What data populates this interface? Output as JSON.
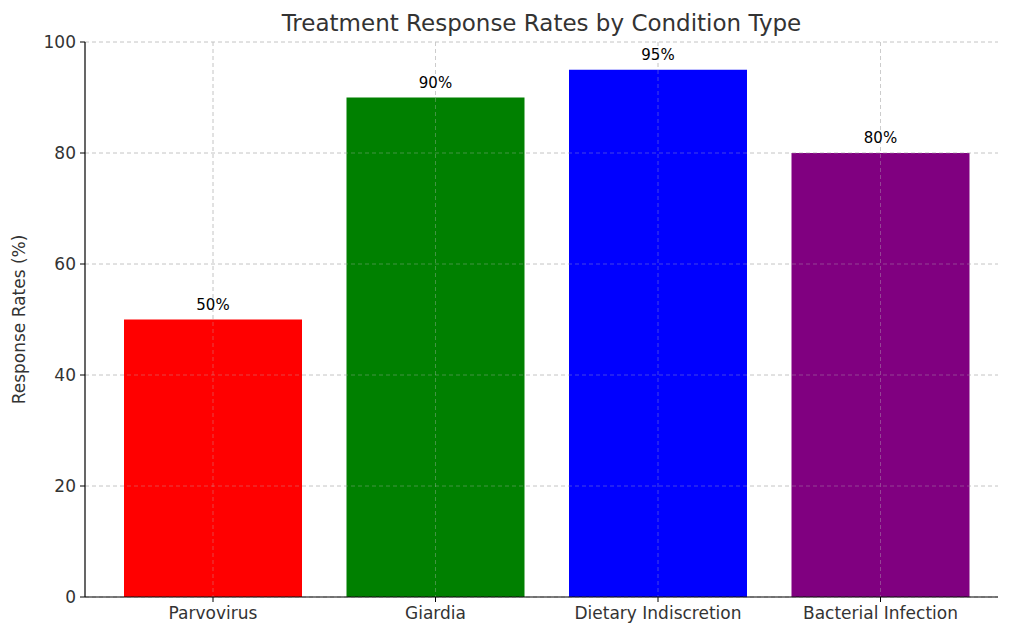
{
  "chart_data": {
    "type": "bar",
    "title": "Treatment Response Rates by Condition Type",
    "ylabel": "Response Rates (%)",
    "categories": [
      "Parvovirus",
      "Giardia",
      "Dietary Indiscretion",
      "Bacterial Infection"
    ],
    "values": [
      50,
      90,
      95,
      80
    ],
    "value_labels": [
      "50%",
      "90%",
      "95%",
      "80%"
    ],
    "colors": [
      "#ff0000",
      "#008000",
      "#0000ff",
      "#800080"
    ],
    "ylim": [
      0,
      100
    ],
    "yticks": [
      0,
      20,
      40,
      60,
      80,
      100
    ],
    "grid": true,
    "data_labels": true
  }
}
